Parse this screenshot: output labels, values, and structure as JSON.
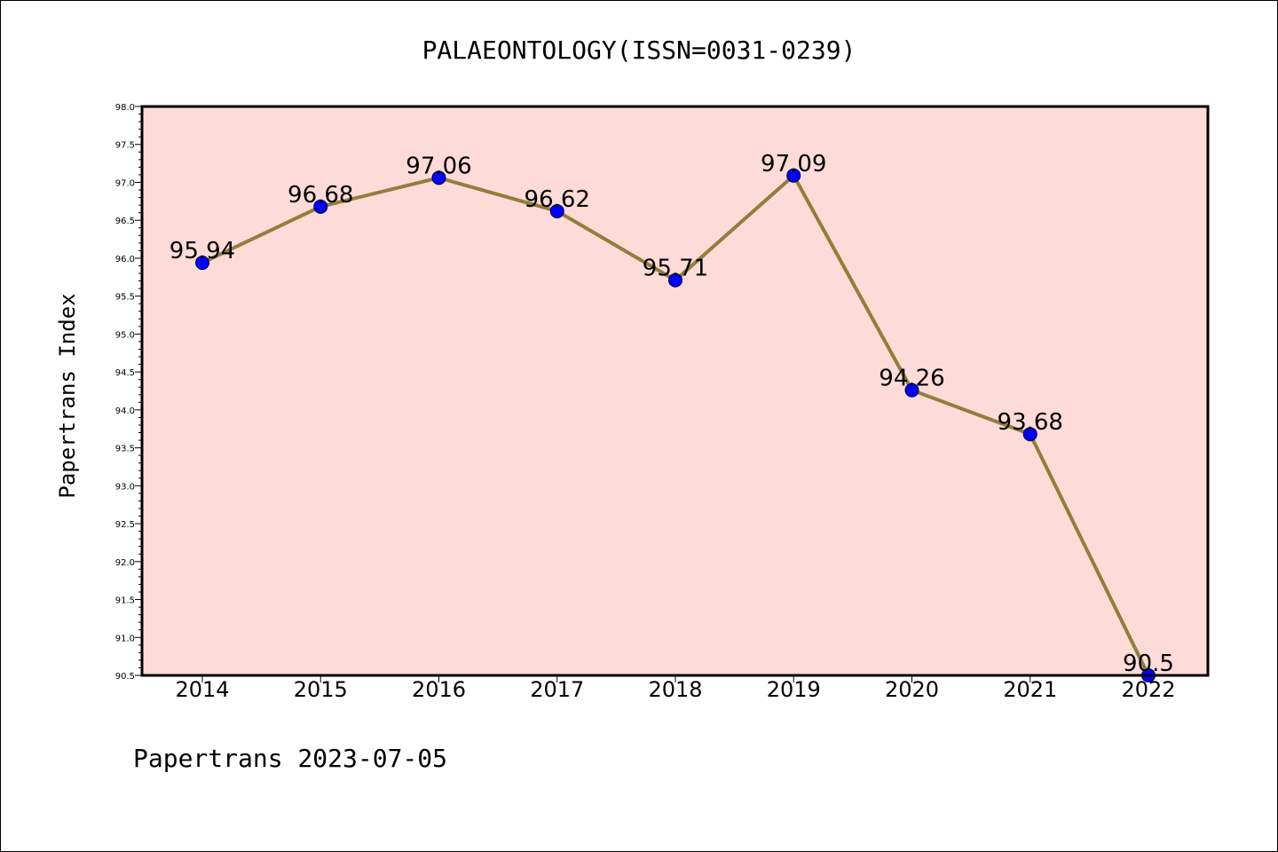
{
  "chart_data": {
    "type": "line",
    "title": "PALAEONTOLOGY(ISSN=0031-0239)",
    "xlabel": "",
    "ylabel": "Papertrans Index",
    "footer": "Papertrans 2023-07-05",
    "categories": [
      "2014",
      "2015",
      "2016",
      "2017",
      "2018",
      "2019",
      "2020",
      "2021",
      "2022"
    ],
    "series": [
      {
        "values": [
          95.94,
          96.68,
          97.06,
          96.62,
          95.71,
          97.09,
          94.26,
          93.68,
          90.5
        ],
        "labels": [
          "95.94",
          "96.68",
          "97.06",
          "96.62",
          "95.71",
          "97.09",
          "94.26",
          "93.68",
          "90.5"
        ]
      }
    ],
    "ylim": [
      90.5,
      98.0
    ],
    "yticks": [
      "90.5",
      "91.0",
      "91.5",
      "92.0",
      "92.5",
      "93.0",
      "93.5",
      "94.0",
      "94.5",
      "95.0",
      "95.5",
      "96.0",
      "96.5",
      "97.0",
      "97.5",
      "98.0"
    ],
    "grid": false,
    "legend": "none",
    "colors": {
      "plot_background": "#fddbd8",
      "line": "#8f7f3a",
      "marker": "#0000ff",
      "axis": "#000000"
    }
  }
}
